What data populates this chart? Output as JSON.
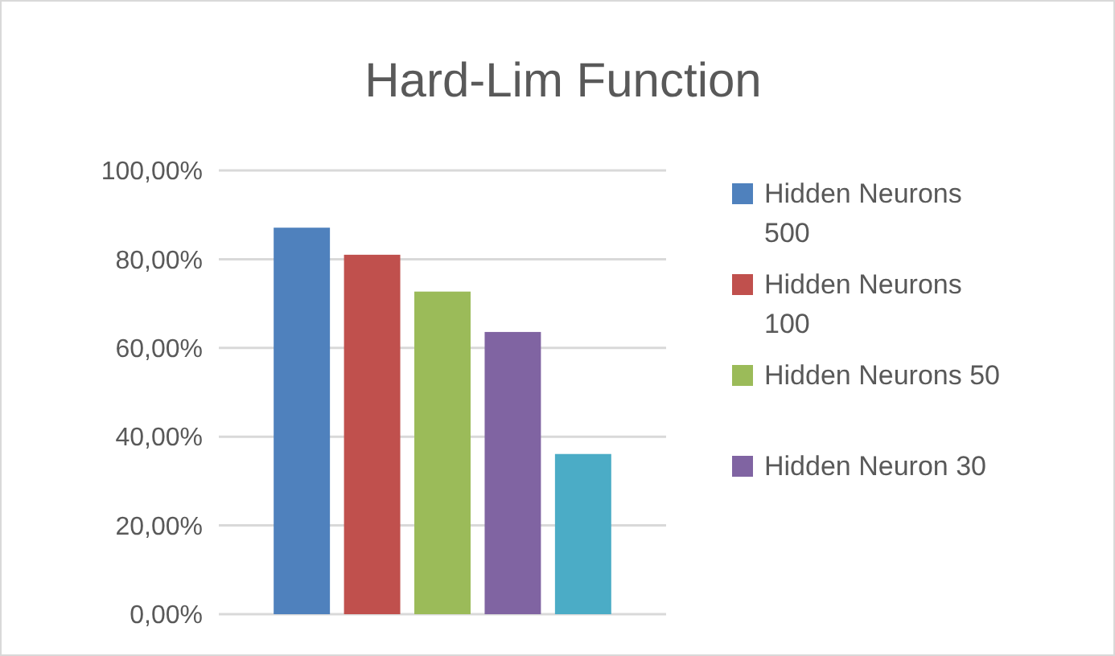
{
  "chart_data": {
    "type": "bar",
    "title": "Hard-Lim Function",
    "categories": [
      null
    ],
    "series": [
      {
        "name": "Hidden Neurons 500",
        "color": "#4f81bd",
        "values": [
          87.1
        ]
      },
      {
        "name": "Hidden Neurons 100",
        "color": "#c0504d",
        "values": [
          81.0
        ]
      },
      {
        "name": "Hidden Neurons 50",
        "color": "#9bbb59",
        "values": [
          72.7
        ]
      },
      {
        "name": "Hidden Neuron 30",
        "color": "#8064a2",
        "values": [
          63.6
        ]
      },
      {
        "color": "#4bacc6",
        "values": [
          36.1
        ]
      }
    ],
    "ylim": [
      0,
      100
    ],
    "yticks": [
      {
        "value": 0,
        "label": "0,00%"
      },
      {
        "value": 20,
        "label": "20,00%"
      },
      {
        "value": 40,
        "label": "40,00%"
      },
      {
        "value": 60,
        "label": "60,00%"
      },
      {
        "value": 80,
        "label": "80,00%"
      },
      {
        "value": 100,
        "label": "100,00%"
      }
    ],
    "grid": "y",
    "legend": "right"
  }
}
